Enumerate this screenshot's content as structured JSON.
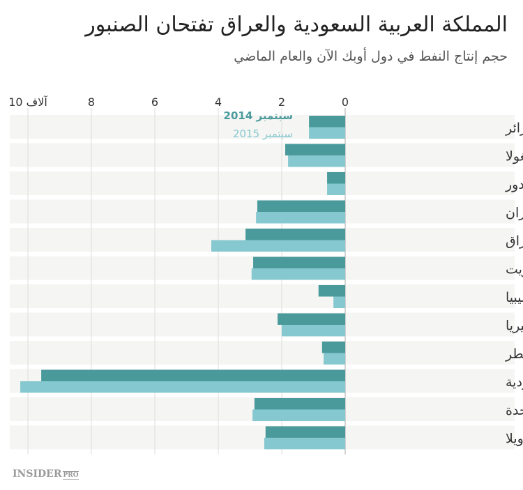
{
  "chart_data": {
    "type": "bar",
    "orientation": "horizontal",
    "title": "المملكة العربية السعودية والعراق تفتحان الصنبور",
    "subtitle": "حجم إنتاج النفط في دول أوبك الآن والعام الماضي",
    "categories": [
      "الجزائر",
      "أنغولا",
      "الإكوادور",
      "إيران",
      "العراق",
      "الكويت",
      "ليبيا",
      "نيجيريا",
      "قطر",
      "المملكة العربية السعودية",
      "الإمارات العربية المتحدة",
      "فنزويلا"
    ],
    "series": [
      {
        "name": "سبتمبر 2014",
        "color": "#4a9a9c",
        "values": [
          1.14,
          1.89,
          0.57,
          2.77,
          3.14,
          2.9,
          0.84,
          2.13,
          0.73,
          9.58,
          2.86,
          2.51
        ]
      },
      {
        "name": "سبتمبر 2015",
        "color": "#86c8cf",
        "values": [
          1.14,
          1.8,
          0.57,
          2.81,
          4.22,
          2.95,
          0.37,
          2.0,
          0.68,
          10.24,
          2.92,
          2.55
        ]
      }
    ],
    "xlim": [
      0,
      10
    ],
    "x_direction": "right-to-left",
    "ticks": [
      "0",
      "2",
      "4",
      "6",
      "8",
      "10 آلاف"
    ],
    "tick_values": [
      0,
      2,
      4,
      6,
      8,
      10
    ],
    "grid": true,
    "legend_placement": "top-inline"
  },
  "branding": {
    "logo": "INSIDER",
    "logo_suffix": "PRO"
  }
}
